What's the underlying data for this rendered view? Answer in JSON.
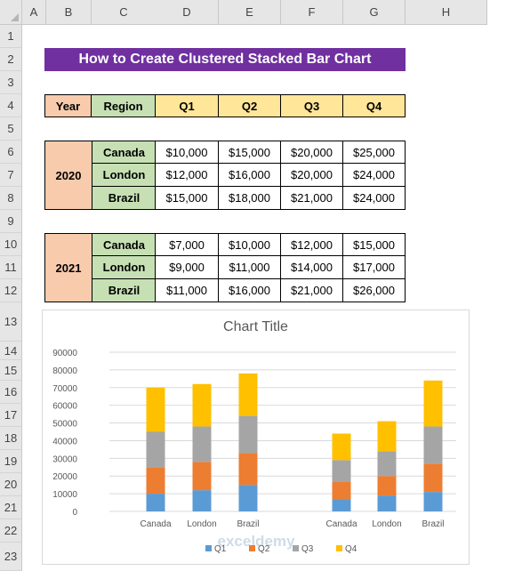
{
  "columns": [
    "A",
    "B",
    "C",
    "D",
    "E",
    "F",
    "G",
    "H"
  ],
  "rows": [
    "1",
    "2",
    "3",
    "4",
    "5",
    "6",
    "7",
    "8",
    "9",
    "10",
    "11",
    "12",
    "13",
    "14",
    "15",
    "16",
    "17",
    "18",
    "19",
    "20",
    "21",
    "22",
    "23"
  ],
  "sheet_title": "How to Create Clustered Stacked Bar Chart",
  "table_headers": [
    "Year",
    "Region",
    "Q1",
    "Q2",
    "Q3",
    "Q4"
  ],
  "groups": [
    {
      "year": "2020",
      "rows": [
        {
          "region": "Canada",
          "q": [
            "$10,000",
            "$15,000",
            "$20,000",
            "$25,000"
          ]
        },
        {
          "region": "London",
          "q": [
            "$12,000",
            "$16,000",
            "$20,000",
            "$24,000"
          ]
        },
        {
          "region": "Brazil",
          "q": [
            "$15,000",
            "$18,000",
            "$21,000",
            "$24,000"
          ]
        }
      ]
    },
    {
      "year": "2021",
      "rows": [
        {
          "region": "Canada",
          "q": [
            "$7,000",
            "$10,000",
            "$12,000",
            "$15,000"
          ]
        },
        {
          "region": "London",
          "q": [
            "$9,000",
            "$11,000",
            "$14,000",
            "$17,000"
          ]
        },
        {
          "region": "Brazil",
          "q": [
            "$11,000",
            "$16,000",
            "$21,000",
            "$26,000"
          ]
        }
      ]
    }
  ],
  "chart_data": {
    "type": "bar",
    "stacked": true,
    "title": "Chart Title",
    "categories": [
      "Canada",
      "London",
      "Brazil",
      "",
      "Canada",
      "London",
      "Brazil"
    ],
    "series": [
      {
        "name": "Q1",
        "color": "#5b9bd5",
        "values": [
          10000,
          12000,
          15000,
          0,
          7000,
          9000,
          11000
        ]
      },
      {
        "name": "Q2",
        "color": "#ed7d31",
        "values": [
          15000,
          16000,
          18000,
          0,
          10000,
          11000,
          16000
        ]
      },
      {
        "name": "Q3",
        "color": "#a5a5a5",
        "values": [
          20000,
          20000,
          21000,
          0,
          12000,
          14000,
          21000
        ]
      },
      {
        "name": "Q4",
        "color": "#ffc000",
        "values": [
          25000,
          24000,
          24000,
          0,
          15000,
          17000,
          26000
        ]
      }
    ],
    "yticks": [
      "0",
      "10000",
      "20000",
      "30000",
      "40000",
      "50000",
      "60000",
      "70000",
      "80000",
      "90000"
    ],
    "ylim": [
      0,
      90000
    ],
    "grid": true,
    "legend": "bottom"
  },
  "watermark": "exceldemy"
}
